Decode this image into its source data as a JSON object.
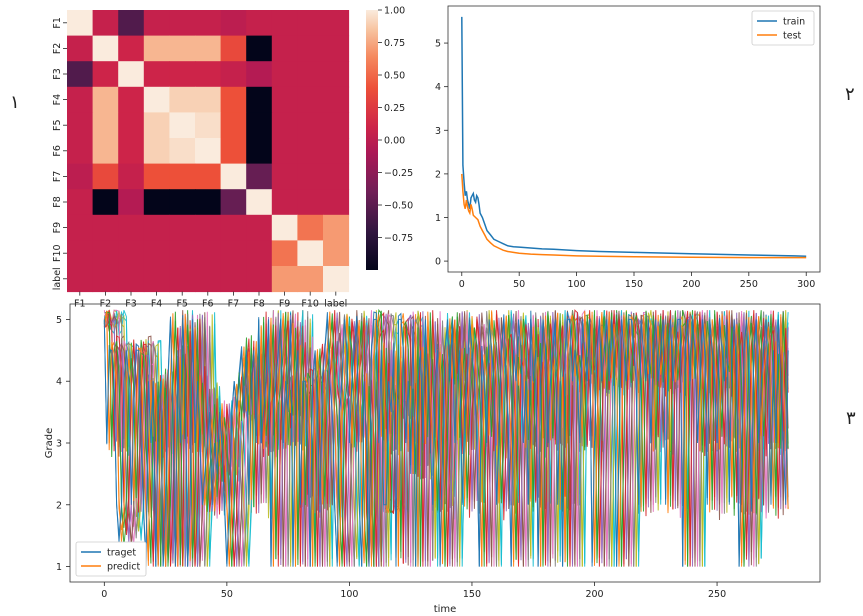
{
  "panel_labels": [
    "١",
    "٢",
    "٣"
  ],
  "chart_data": [
    {
      "type": "heatmap",
      "title": "",
      "row_labels": [
        "F1",
        "F2",
        "F3",
        "F4",
        "F5",
        "F6",
        "F7",
        "F8",
        "F9",
        "F10",
        "label"
      ],
      "col_labels": [
        "F1",
        "F2",
        "F3",
        "F4",
        "F5",
        "F6",
        "F7",
        "F8",
        "F9",
        "F10",
        "label"
      ],
      "values": [
        [
          1.0,
          0.05,
          -0.55,
          0.05,
          0.05,
          0.05,
          0.0,
          0.05,
          0.05,
          0.05,
          0.05
        ],
        [
          0.05,
          1.0,
          0.1,
          0.8,
          0.8,
          0.8,
          0.35,
          -1.0,
          0.05,
          0.05,
          0.05
        ],
        [
          -0.55,
          0.1,
          1.0,
          0.1,
          0.1,
          0.1,
          0.05,
          -0.05,
          0.05,
          0.05,
          0.05
        ],
        [
          0.05,
          0.8,
          0.1,
          1.0,
          0.9,
          0.9,
          0.4,
          -1.0,
          0.05,
          0.05,
          0.05
        ],
        [
          0.05,
          0.8,
          0.1,
          0.9,
          1.0,
          0.95,
          0.4,
          -1.0,
          0.05,
          0.05,
          0.05
        ],
        [
          0.05,
          0.8,
          0.1,
          0.9,
          0.95,
          1.0,
          0.4,
          -1.0,
          0.05,
          0.05,
          0.05
        ],
        [
          0.0,
          0.35,
          0.05,
          0.4,
          0.4,
          0.4,
          1.0,
          -0.45,
          0.05,
          0.05,
          0.05
        ],
        [
          0.05,
          -1.0,
          -0.05,
          -1.0,
          -1.0,
          -1.0,
          -0.45,
          1.0,
          0.05,
          0.05,
          0.05
        ],
        [
          0.05,
          0.05,
          0.05,
          0.05,
          0.05,
          0.05,
          0.05,
          0.05,
          1.0,
          0.55,
          0.7
        ],
        [
          0.05,
          0.05,
          0.05,
          0.05,
          0.05,
          0.05,
          0.05,
          0.05,
          0.55,
          1.0,
          0.7
        ],
        [
          0.05,
          0.05,
          0.05,
          0.05,
          0.05,
          0.05,
          0.05,
          0.05,
          0.7,
          0.7,
          1.0
        ]
      ],
      "colorbar": {
        "min": -1.0,
        "max": 1.0,
        "ticks": [
          "1.00",
          "0.75",
          "0.50",
          "0.25",
          "0.00",
          "-0.25",
          "-0.50",
          "-0.75"
        ]
      }
    },
    {
      "type": "line",
      "title": "",
      "xlabel": "",
      "ylabel": "",
      "xlim": [
        -12,
        312
      ],
      "ylim": [
        -0.25,
        5.85
      ],
      "xticks": [
        "0",
        "50",
        "100",
        "150",
        "200",
        "250",
        "300"
      ],
      "yticks": [
        "0",
        "1",
        "2",
        "3",
        "4",
        "5"
      ],
      "legend_position": "top-right",
      "series": [
        {
          "name": "train",
          "color": "#1f77b4",
          "x": [
            0,
            1,
            2,
            3,
            4,
            5,
            6,
            7,
            8,
            9,
            10,
            11,
            12,
            13,
            14,
            15,
            16,
            18,
            20,
            22,
            25,
            28,
            32,
            36,
            40,
            45,
            50,
            60,
            70,
            80,
            100,
            120,
            150,
            200,
            250,
            290,
            300
          ],
          "y": [
            5.6,
            2.2,
            1.8,
            1.5,
            1.6,
            1.4,
            1.3,
            1.2,
            1.45,
            1.5,
            1.55,
            1.4,
            1.35,
            1.5,
            1.45,
            1.3,
            1.1,
            1.0,
            0.85,
            0.7,
            0.6,
            0.5,
            0.45,
            0.4,
            0.35,
            0.33,
            0.32,
            0.3,
            0.28,
            0.27,
            0.24,
            0.22,
            0.2,
            0.17,
            0.14,
            0.12,
            0.11
          ]
        },
        {
          "name": "test",
          "color": "#ff7f0e",
          "x": [
            0,
            1,
            2,
            3,
            4,
            5,
            6,
            7,
            8,
            9,
            10,
            12,
            14,
            16,
            18,
            20,
            22,
            25,
            28,
            32,
            36,
            40,
            45,
            50,
            60,
            70,
            80,
            100,
            120,
            150,
            200,
            250,
            290,
            300
          ],
          "y": [
            2.0,
            1.6,
            1.3,
            1.2,
            1.4,
            1.25,
            1.15,
            1.1,
            1.3,
            1.2,
            1.05,
            1.0,
            0.95,
            0.8,
            0.7,
            0.6,
            0.5,
            0.42,
            0.35,
            0.3,
            0.25,
            0.22,
            0.2,
            0.18,
            0.16,
            0.15,
            0.14,
            0.12,
            0.11,
            0.1,
            0.09,
            0.08,
            0.08,
            0.08
          ]
        }
      ]
    },
    {
      "type": "line",
      "title": "",
      "xlabel": "time",
      "ylabel": "Grade",
      "xlim": [
        -14,
        292
      ],
      "ylim": [
        0.75,
        5.25
      ],
      "xticks": [
        "0",
        "50",
        "100",
        "150",
        "200",
        "250"
      ],
      "yticks": [
        "1",
        "2",
        "3",
        "4",
        "5"
      ],
      "legend_position": "bottom-left",
      "legend": [
        {
          "name": "traget",
          "color": "#1f77b4"
        },
        {
          "name": "predict",
          "color": "#ff7f0e"
        }
      ],
      "n_points": 280,
      "series_colors": [
        "#1f77b4",
        "#ff7f0e",
        "#2ca02c",
        "#d62728",
        "#9467bd",
        "#8c564b",
        "#e377c2",
        "#7f7f7f",
        "#bcbd22",
        "#17becf"
      ],
      "target_values": [
        5,
        3,
        4.5,
        4.5,
        4,
        2,
        1.5,
        2,
        4,
        4.5,
        4,
        2,
        3.5,
        4.5,
        4.5,
        3,
        2,
        1,
        4,
        3,
        4,
        1,
        3.5,
        4,
        1,
        2,
        4,
        5,
        3.5,
        1,
        4.5,
        3,
        5,
        4,
        1,
        2,
        5,
        3,
        4,
        3,
        2,
        2.5,
        3,
        3.5,
        2,
        3,
        2.5,
        3.5,
        3,
        2,
        1,
        2,
        3.5,
        4,
        3.5,
        4,
        4.5,
        3.5,
        4.5,
        2,
        4,
        4.5,
        3,
        5,
        3,
        3.5,
        4,
        5,
        1,
        3.5,
        4,
        4.5,
        5,
        3,
        4,
        3.5,
        5,
        1,
        4,
        4.5,
        2,
        4,
        4,
        3,
        1,
        4,
        4.5,
        3.5,
        2,
        4,
        4.5,
        5,
        4,
        3.5,
        2,
        1,
        3.5,
        4,
        5,
        4.5,
        3,
        4,
        4.5,
        5,
        2,
        1,
        4,
        3,
        1,
        4.5,
        5,
        5,
        3,
        4.5,
        2,
        2,
        4,
        3.5,
        4.5,
        1,
        5,
        5,
        4.5,
        3,
        4,
        2.5,
        5,
        1,
        4,
        4.5,
        3,
        5,
        4,
        3,
        2,
        4,
        4.5,
        1,
        3,
        4.5,
        5,
        4,
        5,
        3,
        4,
        4.5,
        2,
        3.5,
        4,
        5,
        4.5,
        4,
        3,
        1,
        4.5,
        4,
        3,
        5,
        4.5,
        4,
        2,
        3,
        4.5,
        5,
        4,
        3,
        1,
        4.5,
        4,
        5,
        4.5,
        3,
        4,
        2,
        5,
        4,
        4.5,
        1,
        4,
        5,
        4.5,
        3,
        4,
        4.5,
        5,
        2,
        4,
        1,
        4.5,
        5,
        5,
        4,
        4.5,
        4,
        3,
        5,
        4.5,
        4,
        5,
        1,
        3,
        4.5,
        5,
        4,
        4.5,
        5,
        4,
        5,
        4.5,
        1,
        3,
        5,
        4.5,
        4,
        5,
        5,
        4.5,
        4,
        2,
        5,
        4.5,
        4,
        5,
        3,
        4.5,
        5,
        4,
        4.5,
        5,
        2,
        4.5,
        5,
        4,
        4.5,
        5,
        5,
        1,
        4.5,
        5,
        4,
        5,
        4.5,
        3,
        4,
        5,
        4.5,
        2,
        5,
        4.5,
        4,
        3,
        5,
        4.5,
        4,
        5,
        2,
        4.5,
        5,
        4,
        1,
        3,
        4.5,
        5,
        4,
        2,
        4.5,
        5,
        3,
        4,
        4.5,
        5,
        4,
        2,
        4.5,
        3,
        5,
        4,
        3,
        2,
        4.5,
        5,
        3,
        2
      ]
    }
  ]
}
